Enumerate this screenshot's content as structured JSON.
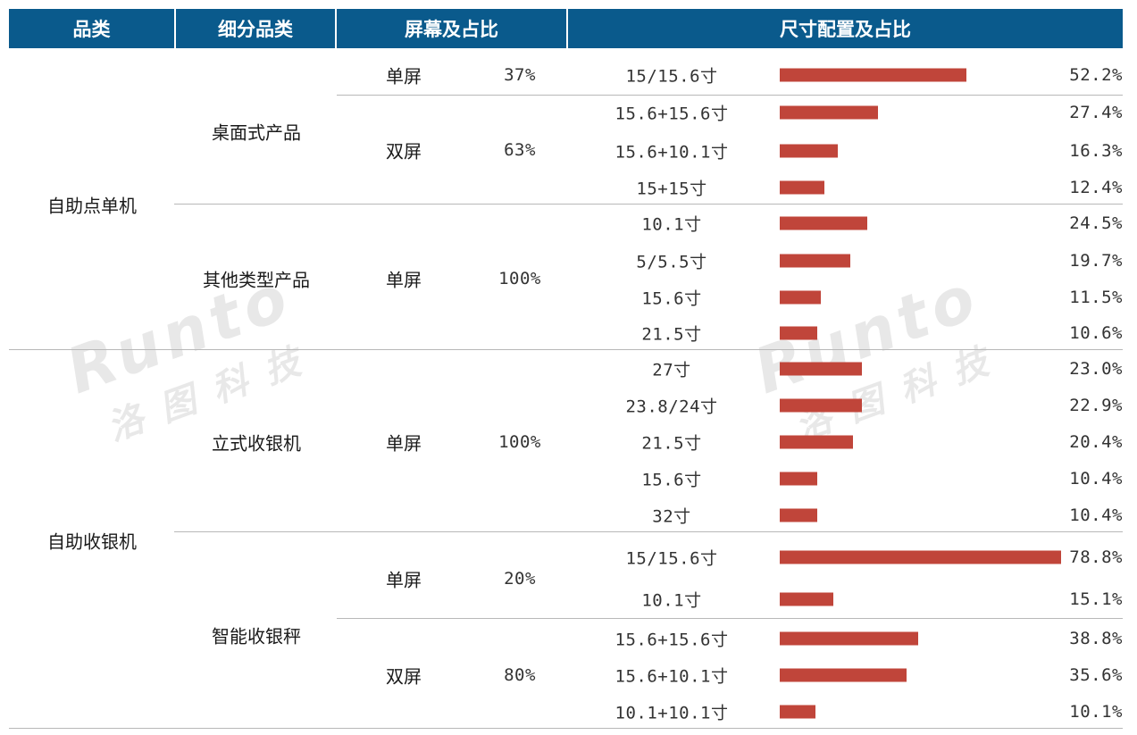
{
  "headers": [
    "品类",
    "细分品类",
    "屏幕及占比",
    "尺寸配置及占比"
  ],
  "watermark": {
    "brand": "Runto",
    "cn": "洛图科技"
  },
  "colors": {
    "header_bg": "#0a5a8c",
    "bar": "#c0453a"
  },
  "categories": [
    {
      "label": "自助点单机",
      "subs": [
        {
          "label": "桌面式产品",
          "screens": [
            {
              "label": "单屏",
              "pct": "37%",
              "sizes": [
                {
                  "label": "15/15.6寸",
                  "value": 52.2,
                  "text": "52.2%"
                }
              ]
            },
            {
              "label": "双屏",
              "pct": "63%",
              "sizes": [
                {
                  "label": "15.6+15.6寸",
                  "value": 27.4,
                  "text": "27.4%"
                },
                {
                  "label": "15.6+10.1寸",
                  "value": 16.3,
                  "text": "16.3%"
                },
                {
                  "label": "15+15寸",
                  "value": 12.4,
                  "text": "12.4%"
                }
              ]
            }
          ]
        },
        {
          "label": "其他类型产品",
          "screens": [
            {
              "label": "单屏",
              "pct": "100%",
              "sizes": [
                {
                  "label": "10.1寸",
                  "value": 24.5,
                  "text": "24.5%"
                },
                {
                  "label": "5/5.5寸",
                  "value": 19.7,
                  "text": "19.7%"
                },
                {
                  "label": "15.6寸",
                  "value": 11.5,
                  "text": "11.5%"
                },
                {
                  "label": "21.5寸",
                  "value": 10.6,
                  "text": "10.6%"
                }
              ]
            }
          ]
        }
      ]
    },
    {
      "label": "自助收银机",
      "subs": [
        {
          "label": "立式收银机",
          "screens": [
            {
              "label": "单屏",
              "pct": "100%",
              "sizes": [
                {
                  "label": "27寸",
                  "value": 23.0,
                  "text": "23.0%"
                },
                {
                  "label": "23.8/24寸",
                  "value": 22.9,
                  "text": "22.9%"
                },
                {
                  "label": "21.5寸",
                  "value": 20.4,
                  "text": "20.4%"
                },
                {
                  "label": "15.6寸",
                  "value": 10.4,
                  "text": "10.4%"
                },
                {
                  "label": "32寸",
                  "value": 10.4,
                  "text": "10.4%"
                }
              ]
            }
          ]
        },
        {
          "label": "智能收银秤",
          "screens": [
            {
              "label": "单屏",
              "pct": "20%",
              "sizes": [
                {
                  "label": "15/15.6寸",
                  "value": 78.8,
                  "text": "78.8%"
                },
                {
                  "label": "10.1寸",
                  "value": 15.1,
                  "text": "15.1%"
                }
              ]
            },
            {
              "label": "双屏",
              "pct": "80%",
              "sizes": [
                {
                  "label": "15.6+15.6寸",
                  "value": 38.8,
                  "text": "38.8%"
                },
                {
                  "label": "15.6+10.1寸",
                  "value": 35.6,
                  "text": "35.6%"
                },
                {
                  "label": "10.1+10.1寸",
                  "value": 10.1,
                  "text": "10.1%"
                }
              ]
            }
          ]
        }
      ]
    }
  ],
  "chart_data": {
    "type": "bar",
    "orientation": "horizontal",
    "categories": [
      "15/15.6寸",
      "15.6+15.6寸",
      "15.6+10.1寸",
      "15+15寸",
      "10.1寸",
      "5/5.5寸",
      "15.6寸",
      "21.5寸",
      "27寸",
      "23.8/24寸",
      "21.5寸",
      "15.6寸",
      "32寸",
      "15/15.6寸",
      "10.1寸",
      "15.6+15.6寸",
      "15.6+10.1寸",
      "10.1+10.1寸"
    ],
    "values": [
      52.2,
      27.4,
      16.3,
      12.4,
      24.5,
      19.7,
      11.5,
      10.6,
      23.0,
      22.9,
      20.4,
      10.4,
      10.4,
      78.8,
      15.1,
      38.8,
      35.6,
      10.1
    ],
    "unit": "%"
  }
}
